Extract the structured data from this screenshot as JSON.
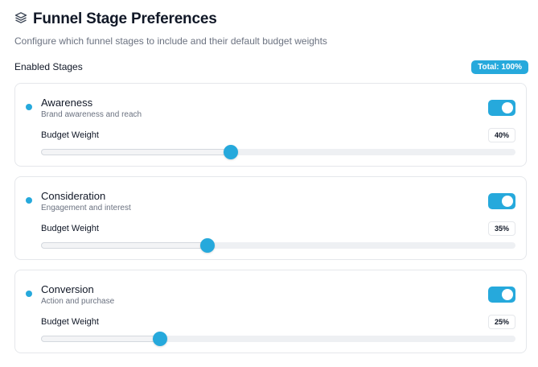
{
  "header": {
    "title": "Funnel Stage Preferences",
    "subtitle": "Configure which funnel stages to include and their default budget weights",
    "icon": "layers-icon"
  },
  "section": {
    "label": "Enabled Stages",
    "total_badge": "Total: 100%"
  },
  "colors": {
    "accent": "#26a9dc"
  },
  "stages": [
    {
      "name": "Awareness",
      "description": "Brand awareness and reach",
      "enabled": true,
      "weight_label": "Budget Weight",
      "weight_text": "40%",
      "weight": 40
    },
    {
      "name": "Consideration",
      "description": "Engagement and interest",
      "enabled": true,
      "weight_label": "Budget Weight",
      "weight_text": "35%",
      "weight": 35
    },
    {
      "name": "Conversion",
      "description": "Action and purchase",
      "enabled": true,
      "weight_label": "Budget Weight",
      "weight_text": "25%",
      "weight": 25
    }
  ]
}
